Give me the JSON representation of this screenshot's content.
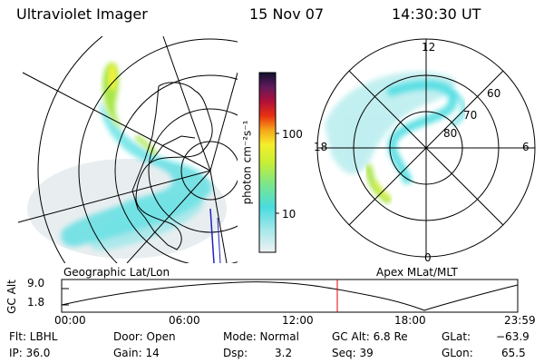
{
  "header": {
    "instrument": "Ultraviolet Imager",
    "date": "15 Nov 07",
    "time": "14:30:30 UT"
  },
  "left_panel": {
    "label": "Geographic Lat/Lon"
  },
  "right_panel": {
    "label": "Apex MLat/MLT",
    "mlt_labels": {
      "top": "12",
      "left": "18",
      "right": "6",
      "bottom": "0"
    },
    "lat_labels": [
      "60",
      "70",
      "80"
    ]
  },
  "colorbar": {
    "unit": "photon cm⁻²s⁻¹",
    "ticks": [
      "100",
      "10"
    ]
  },
  "timeline": {
    "ylabel": "GC Alt",
    "y_ticks": [
      "9.0",
      "1.8"
    ],
    "x_ticks": [
      "00:00",
      "06:00",
      "12:00",
      "18:00",
      "23:59"
    ],
    "current_time_fraction": 0.6044
  },
  "info": {
    "filter": "Flt: LBHL",
    "ip": "IP: 36.0",
    "door": "Door: Open",
    "gain": "Gain: 14",
    "mode": "Mode: Normal",
    "dsp_label": "Dsp:",
    "dsp_value": "3.2",
    "gc_alt": "GC Alt: 6.8 Re",
    "seq": "Seq: 39",
    "glat_label": "GLat:",
    "glat_value": "−63.9",
    "glon_label": "GLon:",
    "glon_value": "65.5"
  },
  "colors": {
    "aurora_cyan": "#49dce0",
    "aurora_green": "#a8e64a",
    "aurora_yellow": "#f2f23c",
    "line": "#000000",
    "time_marker": "#e00000"
  }
}
